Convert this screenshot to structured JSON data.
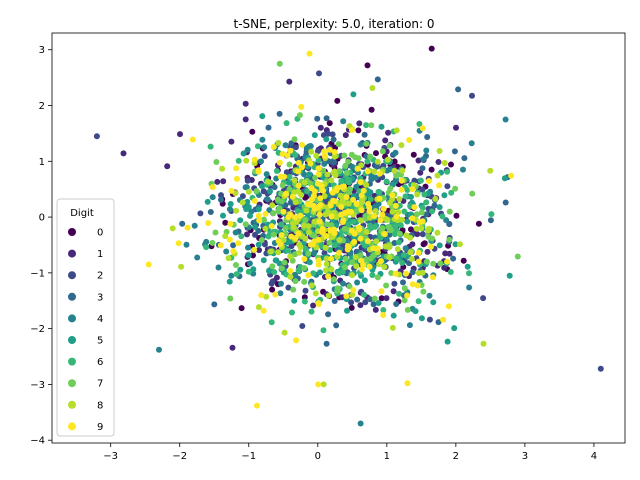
{
  "chart_data": {
    "type": "scatter",
    "title": "t-SNE, perplexity: 5.0, iteration: 0",
    "xlabel": "",
    "ylabel": "",
    "xlim": [
      -3.85,
      4.45
    ],
    "ylim": [
      -4.05,
      3.3
    ],
    "x_ticks": [
      -3,
      -2,
      -1,
      0,
      1,
      2,
      3,
      4
    ],
    "y_ticks": [
      -4,
      -3,
      -2,
      -1,
      0,
      1,
      2,
      3
    ],
    "grid": false,
    "legend": {
      "title": "Digit",
      "placement": "center-left",
      "entries": [
        "0",
        "1",
        "2",
        "3",
        "4",
        "5",
        "6",
        "7",
        "8",
        "9"
      ]
    },
    "colors": [
      "#440154",
      "#482878",
      "#3e4989",
      "#31688e",
      "#26828e",
      "#1f9e89",
      "#35b779",
      "#6ece58",
      "#b5de2b",
      "#fde725"
    ],
    "point_count_per_series": 180,
    "spread": 0.78,
    "notable_points": [
      {
        "x": 1.65,
        "y": 3.02,
        "digit": 0
      },
      {
        "x": 4.1,
        "y": -2.72,
        "digit": 2
      },
      {
        "x": 0.62,
        "y": -3.7,
        "digit": 4
      },
      {
        "x": -0.88,
        "y": -3.38,
        "digit": 9
      },
      {
        "x": -3.2,
        "y": 1.45,
        "digit": 2
      },
      {
        "x": -0.12,
        "y": 2.93,
        "digit": 9
      },
      {
        "x": 2.8,
        "y": 0.74,
        "digit": 9
      },
      {
        "x": 2.72,
        "y": 1.75,
        "digit": 4
      },
      {
        "x": 2.78,
        "y": -1.05,
        "digit": 5
      },
      {
        "x": -2.3,
        "y": -2.38,
        "digit": 4
      },
      {
        "x": 1.3,
        "y": -2.98,
        "digit": 9
      },
      {
        "x": -0.55,
        "y": 2.75,
        "digit": 7
      },
      {
        "x": 2.4,
        "y": -2.27,
        "digit": 8
      },
      {
        "x": 0.72,
        "y": 2.72,
        "digit": 0
      },
      {
        "x": -2.45,
        "y": -0.85,
        "digit": 9
      }
    ]
  }
}
